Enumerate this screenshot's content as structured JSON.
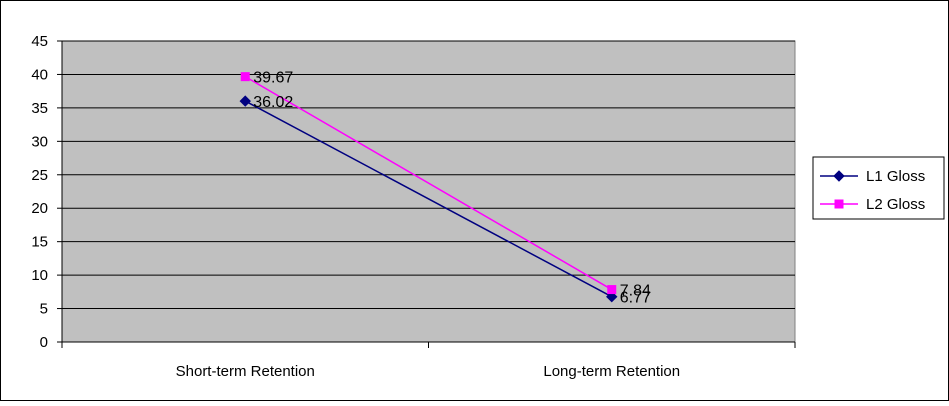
{
  "chart_data": {
    "type": "line",
    "title": "",
    "xlabel": "",
    "ylabel": "",
    "categories": [
      "Short-term Retention",
      "Long-term Retention"
    ],
    "ylim": [
      0,
      45
    ],
    "yticks": [
      0,
      5,
      10,
      15,
      20,
      25,
      30,
      35,
      40,
      45
    ],
    "grid": true,
    "legend_position": "right",
    "plot_background": "#c0c0c0",
    "series": [
      {
        "name": "L1 Gloss",
        "values": [
          36.02,
          6.77
        ],
        "labels": [
          "36.02",
          "6.77"
        ],
        "color": "#000080",
        "marker": "diamond"
      },
      {
        "name": "L2 Gloss",
        "values": [
          39.67,
          7.84
        ],
        "labels": [
          "39.67",
          "7.84"
        ],
        "color": "#ff00ff",
        "marker": "square"
      }
    ]
  }
}
